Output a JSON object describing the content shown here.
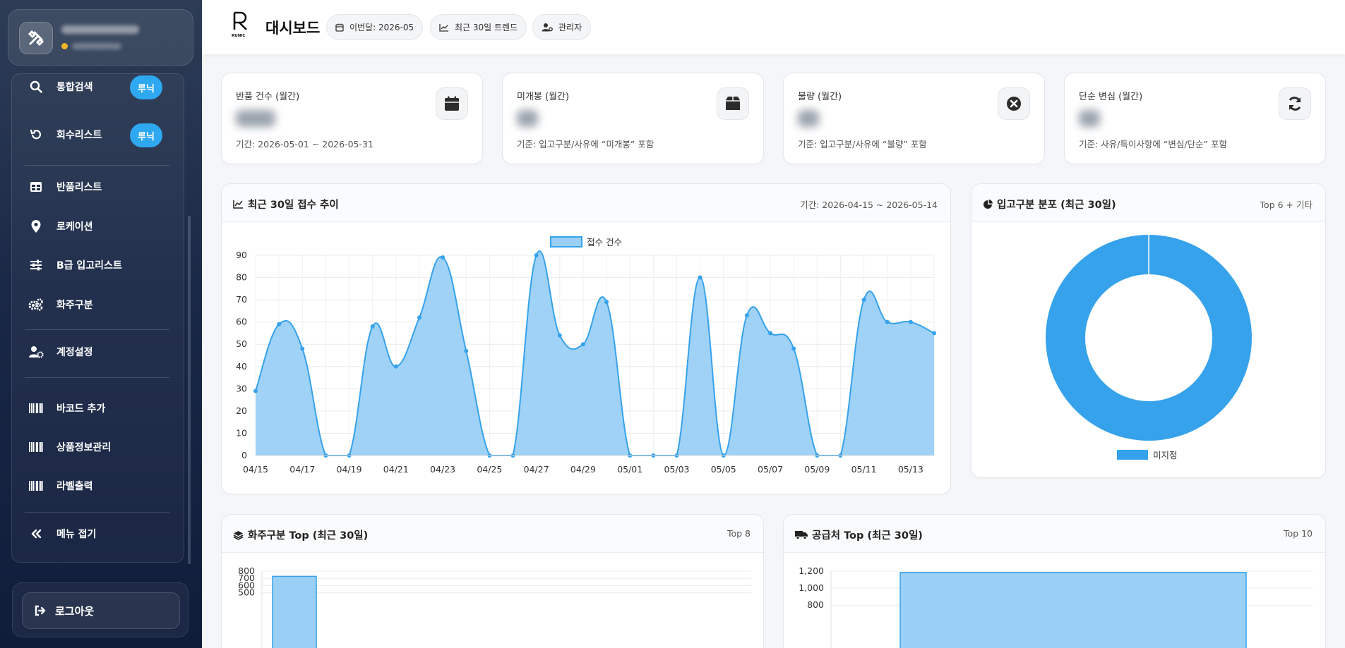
{
  "app": {
    "page_title": "대시보드",
    "logo_text": "RUNIC"
  },
  "header_chips": [
    {
      "label": "이번달: 2026-05",
      "icon": "calendar-icon"
    },
    {
      "label": "최근 30일 트렌드",
      "icon": "trend-icon"
    },
    {
      "label": "관리자",
      "icon": "user-cog-icon"
    }
  ],
  "sidebar": {
    "items": [
      {
        "label": "통합검색",
        "icon": "search-icon",
        "badge": "루닉"
      },
      {
        "label": "회수리스트",
        "icon": "undo-icon",
        "badge": "루닉"
      },
      {
        "label": "반품리스트",
        "icon": "table-icon"
      },
      {
        "label": "로케이션",
        "icon": "location-pin-icon"
      },
      {
        "label": "B급 입고리스트",
        "icon": "sliders-icon"
      },
      {
        "label": "화주구분",
        "icon": "gears-icon"
      },
      {
        "label": "계정설정",
        "icon": "user-gear-icon"
      },
      {
        "label": "바코드 추가",
        "icon": "barcode-icon"
      },
      {
        "label": "상품정보관리",
        "icon": "barcode-icon"
      },
      {
        "label": "라벨출력",
        "icon": "barcode-icon"
      },
      {
        "label": "메뉴 접기",
        "icon": "double-chevron-left-icon"
      }
    ],
    "logout_label": "로그아웃"
  },
  "stats": [
    {
      "label": "반품 건수 (월간)",
      "sub": "기간: 2026-05-01 ~ 2026-05-31",
      "icon": "calendar-icon"
    },
    {
      "label": "미개봉 (월간)",
      "sub": "기준: 입고구분/사유에 “미개봉” 포함",
      "icon": "box-icon"
    },
    {
      "label": "불량 (월간)",
      "sub": "기준: 입고구분/사유에 “불량” 포함",
      "icon": "x-circle-icon"
    },
    {
      "label": "단순 변심 (월간)",
      "sub": "기준: 사유/특이사항에 “변심/단순” 포함",
      "icon": "refresh-icon"
    }
  ],
  "trend_panel": {
    "title": "최근 30일 접수 추이",
    "meta": "기간: 2026-04-15 ~ 2026-05-14"
  },
  "donut_panel": {
    "title": "입고구분 분포 (최근 30일)",
    "meta": "Top 6 + 기타"
  },
  "shipper_panel": {
    "title": "화주구분 Top (최근 30일)",
    "meta": "Top 8"
  },
  "supplier_panel": {
    "title": "공급처 Top (최근 30일)",
    "meta": "Top 10"
  },
  "colors": {
    "accent": "#36a2eb",
    "fill": "#9ad0f5"
  },
  "chart_data": [
    {
      "type": "area",
      "legend": "접수 건수",
      "ylim": [
        0,
        90
      ],
      "yticks": [
        0,
        10,
        20,
        30,
        40,
        50,
        60,
        70,
        80,
        90
      ],
      "x": [
        "04/15",
        "04/16",
        "04/17",
        "04/18",
        "04/19",
        "04/20",
        "04/21",
        "04/22",
        "04/23",
        "04/24",
        "04/25",
        "04/26",
        "04/27",
        "04/28",
        "04/29",
        "04/30",
        "05/01",
        "05/02",
        "05/03",
        "05/04",
        "05/05",
        "05/06",
        "05/07",
        "05/08",
        "05/09",
        "05/10",
        "05/11",
        "05/12",
        "05/13",
        "05/14"
      ],
      "xtick_labels": [
        "04/15",
        "04/17",
        "04/19",
        "04/21",
        "04/23",
        "04/25",
        "04/27",
        "04/29",
        "05/01",
        "05/03",
        "05/05",
        "05/07",
        "05/09",
        "05/11",
        "05/13"
      ],
      "series": [
        {
          "name": "접수 건수",
          "values": [
            29,
            59,
            48,
            0,
            0,
            58,
            40,
            62,
            89,
            47,
            0,
            0,
            90,
            54,
            50,
            69,
            0,
            0,
            0,
            80,
            0,
            63,
            55,
            48,
            0,
            0,
            70,
            60,
            60,
            55
          ]
        }
      ]
    },
    {
      "type": "pie",
      "categories": [
        "미지정"
      ],
      "values": [
        100
      ]
    },
    {
      "type": "bar",
      "yticks": [
        500,
        600,
        700,
        800
      ],
      "ylim": [
        500,
        800
      ],
      "values": [
        728
      ]
    },
    {
      "type": "bar",
      "yticks": [
        800,
        1000,
        1200
      ],
      "ytick_labels": [
        "800",
        "1,000",
        "1,200"
      ],
      "ylim": [
        800,
        1200
      ],
      "values": [
        1185
      ]
    }
  ]
}
